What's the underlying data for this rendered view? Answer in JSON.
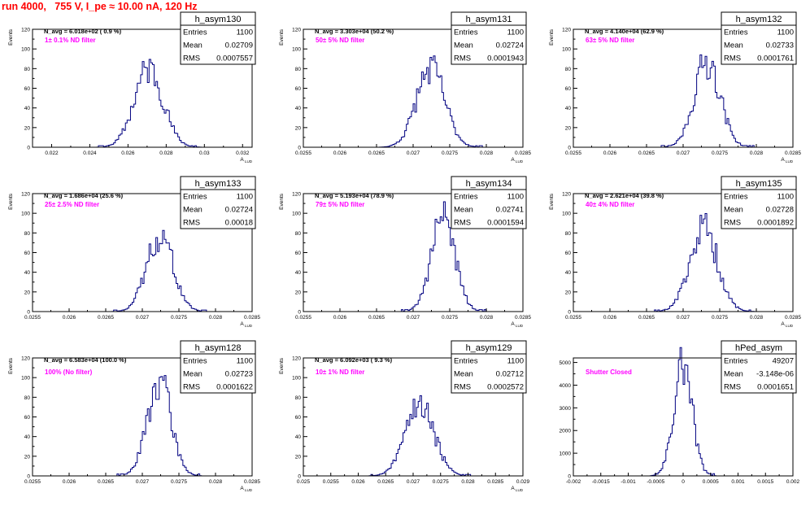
{
  "title": "run 4000,   755 V, I_pe ≈ 10.00 nA, 120 Hz",
  "colors": {
    "title": "#ff0000",
    "annotation": "#ff00ff",
    "histogram": "#000080",
    "axis": "#000000"
  },
  "chart_data": [
    {
      "type": "histogram",
      "name": "h_asym130",
      "nAvg": "N_avg = 6.018e+02 ( 0.9 %)",
      "filter": "1± 0.1% ND filter",
      "stats": {
        "entries": "1100",
        "mean": "0.02709",
        "rms": "0.0007557"
      },
      "ylabel": "Events",
      "xlabel": "A",
      "xlim": [
        0.021,
        0.0325
      ],
      "ylim": [
        0,
        120
      ],
      "xticks": [
        0.022,
        0.024,
        0.026,
        0.028,
        0.03,
        0.032
      ],
      "xtickLabels": [
        "0.022",
        "0.024",
        "0.026",
        "0.028",
        "0.03",
        "0.032"
      ],
      "yticks": [
        0,
        20,
        40,
        60,
        80,
        100,
        120
      ],
      "ytickLabels": [
        "0",
        "20",
        "40",
        "60",
        "80",
        "100",
        "120"
      ],
      "mean": 0.02709,
      "sigma": 0.0007557,
      "peak": 80,
      "bins": 130,
      "seed": 11
    },
    {
      "type": "histogram",
      "name": "h_asym131",
      "nAvg": "N_avg = 3.303e+04 (50.2 %)",
      "filter": "50± 5% ND filter",
      "stats": {
        "entries": "1100",
        "mean": "0.02724",
        "rms": "0.0001943"
      },
      "ylabel": "Events",
      "xlabel": "A",
      "xlim": [
        0.0255,
        0.0285
      ],
      "ylim": [
        0,
        120
      ],
      "xticks": [
        0.0255,
        0.026,
        0.0265,
        0.027,
        0.0275,
        0.028,
        0.0285
      ],
      "xtickLabels": [
        "0.0255",
        "0.026",
        "0.0265",
        "0.027",
        "0.0275",
        "0.028",
        "0.0285"
      ],
      "yticks": [
        0,
        20,
        40,
        60,
        80,
        100,
        120
      ],
      "ytickLabels": [
        "0",
        "20",
        "40",
        "60",
        "80",
        "100",
        "120"
      ],
      "mean": 0.02724,
      "sigma": 0.0001943,
      "peak": 80,
      "bins": 130,
      "seed": 23
    },
    {
      "type": "histogram",
      "name": "h_asym132",
      "nAvg": "N_avg = 4.140e+04 (62.9 %)",
      "filter": "63± 5% ND filter",
      "stats": {
        "entries": "1100",
        "mean": "0.02733",
        "rms": "0.0001761"
      },
      "ylabel": "Events",
      "xlabel": "A",
      "xlim": [
        0.0255,
        0.0285
      ],
      "ylim": [
        0,
        120
      ],
      "xticks": [
        0.0255,
        0.026,
        0.0265,
        0.027,
        0.0275,
        0.028,
        0.0285
      ],
      "xtickLabels": [
        "0.0255",
        "0.026",
        "0.0265",
        "0.027",
        "0.0275",
        "0.028",
        "0.0285"
      ],
      "yticks": [
        0,
        20,
        40,
        60,
        80,
        100,
        120
      ],
      "ytickLabels": [
        "0",
        "20",
        "40",
        "60",
        "80",
        "100",
        "120"
      ],
      "mean": 0.02733,
      "sigma": 0.0001761,
      "peak": 88,
      "bins": 130,
      "seed": 37
    },
    {
      "type": "histogram",
      "name": "h_asym133",
      "nAvg": "N_avg = 1.686e+04 (25.6 %)",
      "filter": "25± 2.5% ND filter",
      "stats": {
        "entries": "1100",
        "mean": "0.02724",
        "rms": "0.00018"
      },
      "ylabel": "Events",
      "xlabel": "A",
      "xlim": [
        0.0255,
        0.0285
      ],
      "ylim": [
        0,
        120
      ],
      "xticks": [
        0.0255,
        0.026,
        0.0265,
        0.027,
        0.0275,
        0.028,
        0.0285
      ],
      "xtickLabels": [
        "0.0255",
        "0.026",
        "0.0265",
        "0.027",
        "0.0275",
        "0.028",
        "0.0285"
      ],
      "yticks": [
        0,
        20,
        40,
        60,
        80,
        100,
        120
      ],
      "ytickLabels": [
        "0",
        "20",
        "40",
        "60",
        "80",
        "100",
        "120"
      ],
      "mean": 0.02724,
      "sigma": 0.00018,
      "peak": 78,
      "bins": 130,
      "seed": 41
    },
    {
      "type": "histogram",
      "name": "h_asym134",
      "nAvg": "N_avg = 5.193e+04 (78.9 %)",
      "filter": "79± 5% ND filter",
      "stats": {
        "entries": "1100",
        "mean": "0.02741",
        "rms": "0.0001594"
      },
      "ylabel": "Events",
      "xlabel": "A",
      "xlim": [
        0.0255,
        0.0285
      ],
      "ylim": [
        0,
        120
      ],
      "xticks": [
        0.0255,
        0.026,
        0.0265,
        0.027,
        0.0275,
        0.028,
        0.0285
      ],
      "xtickLabels": [
        "0.0255",
        "0.026",
        "0.0265",
        "0.027",
        "0.0275",
        "0.028",
        "0.0285"
      ],
      "yticks": [
        0,
        20,
        40,
        60,
        80,
        100,
        120
      ],
      "ytickLabels": [
        "0",
        "20",
        "40",
        "60",
        "80",
        "100",
        "120"
      ],
      "mean": 0.02741,
      "sigma": 0.0001594,
      "peak": 97,
      "bins": 130,
      "seed": 53
    },
    {
      "type": "histogram",
      "name": "h_asym135",
      "nAvg": "N_avg = 2.621e+04 (39.8 %)",
      "filter": "40± 4% ND filter",
      "stats": {
        "entries": "1100",
        "mean": "0.02728",
        "rms": "0.0001892"
      },
      "ylabel": "Events",
      "xlabel": "A",
      "xlim": [
        0.0255,
        0.0285
      ],
      "ylim": [
        0,
        120
      ],
      "xticks": [
        0.0255,
        0.026,
        0.0265,
        0.027,
        0.0275,
        0.028,
        0.0285
      ],
      "xtickLabels": [
        "0.0255",
        "0.026",
        "0.0265",
        "0.027",
        "0.0275",
        "0.028",
        "0.0285"
      ],
      "yticks": [
        0,
        20,
        40,
        60,
        80,
        100,
        120
      ],
      "ytickLabels": [
        "0",
        "20",
        "40",
        "60",
        "80",
        "100",
        "120"
      ],
      "mean": 0.02728,
      "sigma": 0.0001892,
      "peak": 85,
      "bins": 130,
      "seed": 67
    },
    {
      "type": "histogram",
      "name": "h_asym128",
      "nAvg": "N_avg = 6.583e+04 (100.0 %)",
      "filter": "100% (No filter)",
      "stats": {
        "entries": "1100",
        "mean": "0.02723",
        "rms": "0.0001622"
      },
      "ylabel": "Events",
      "xlabel": "A",
      "xlim": [
        0.0255,
        0.0285
      ],
      "ylim": [
        0,
        120
      ],
      "xticks": [
        0.0255,
        0.026,
        0.0265,
        0.027,
        0.0275,
        0.028,
        0.0285
      ],
      "xtickLabels": [
        "0.0255",
        "0.026",
        "0.0265",
        "0.027",
        "0.0275",
        "0.028",
        "0.0285"
      ],
      "yticks": [
        0,
        20,
        40,
        60,
        80,
        100,
        120
      ],
      "ytickLabels": [
        "0",
        "20",
        "40",
        "60",
        "80",
        "100",
        "120"
      ],
      "mean": 0.02723,
      "sigma": 0.0001622,
      "peak": 96,
      "bins": 130,
      "seed": 71
    },
    {
      "type": "histogram",
      "name": "h_asym129",
      "nAvg": "N_avg = 6.092e+03 ( 9.3 %)",
      "filter": "10± 1% ND filter",
      "stats": {
        "entries": "1100",
        "mean": "0.02712",
        "rms": "0.0002572"
      },
      "ylabel": "Events",
      "xlabel": "A",
      "xlim": [
        0.025,
        0.029
      ],
      "ylim": [
        0,
        120
      ],
      "xticks": [
        0.025,
        0.0255,
        0.026,
        0.0265,
        0.027,
        0.0275,
        0.028,
        0.0285,
        0.029
      ],
      "xtickLabels": [
        "0.025",
        "0.0255",
        "0.026",
        "0.0265",
        "0.027",
        "0.0275",
        "0.028",
        "0.0285",
        "0.029"
      ],
      "yticks": [
        0,
        20,
        40,
        60,
        80,
        100,
        120
      ],
      "ytickLabels": [
        "0",
        "20",
        "40",
        "60",
        "80",
        "100",
        "120"
      ],
      "mean": 0.02712,
      "sigma": 0.0002572,
      "peak": 75,
      "bins": 130,
      "seed": 83
    },
    {
      "type": "histogram",
      "name": "hPed_asym",
      "nAvg": "",
      "filter": "Shutter Closed",
      "stats": {
        "entries": "49207",
        "mean": "-3.148e-06",
        "rms": "0.0001651"
      },
      "ylabel": "",
      "xlabel": "",
      "xlim": [
        -0.002,
        0.002
      ],
      "ylim": [
        0,
        5200
      ],
      "xticks": [
        -0.002,
        -0.0015,
        -0.001,
        -0.0005,
        0,
        0.0005,
        0.001,
        0.0015,
        0.002
      ],
      "xtickLabels": [
        "-0.002",
        "-0.0015",
        "-0.001",
        "-0.0005",
        "0",
        "0.0005",
        "0.001",
        "0.0015",
        "0.002"
      ],
      "yticks": [
        0,
        1000,
        2000,
        3000,
        4000,
        5000
      ],
      "ytickLabels": [
        "0",
        "1000",
        "2000",
        "3000",
        "4000",
        "5000"
      ],
      "mean": -3.148e-06,
      "sigma": 0.0001651,
      "peak": 4950,
      "bins": 140,
      "seed": 97
    }
  ]
}
